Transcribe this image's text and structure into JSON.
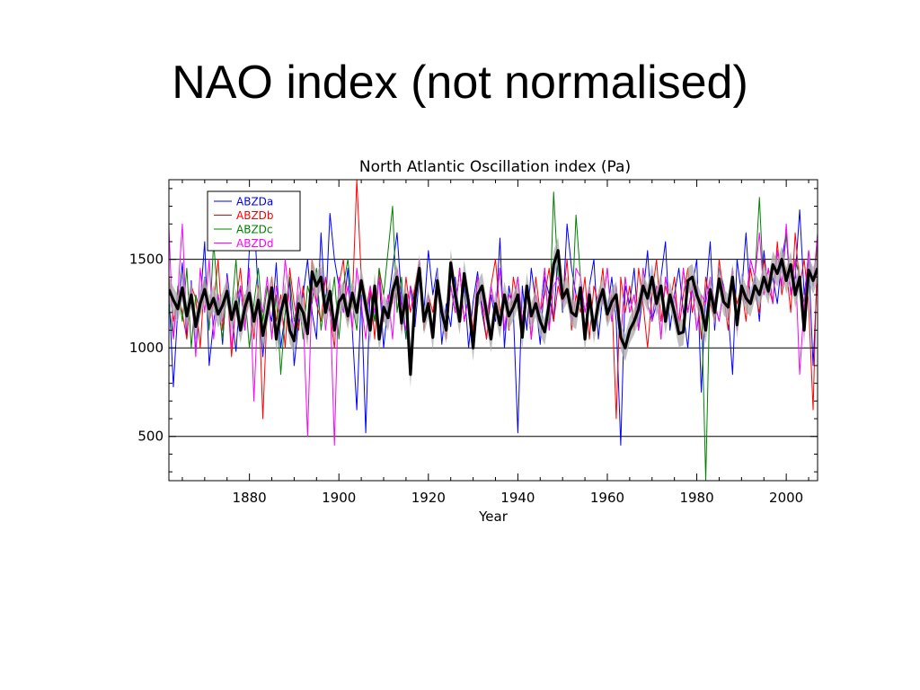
{
  "slide": {
    "title": "NAO index (not normalised)"
  },
  "chart_data": {
    "type": "line",
    "title": "North Atlantic Oscillation index (Pa)",
    "xlabel": "Year",
    "ylabel": "",
    "xlim": [
      1862,
      2007
    ],
    "ylim": [
      250,
      1950
    ],
    "xticks": [
      1880,
      1900,
      1920,
      1940,
      1960,
      1980,
      2000
    ],
    "yticks": [
      500,
      1000,
      1500
    ],
    "horizontal_lines": [
      500,
      1000,
      1500
    ],
    "legend_position": "top-left",
    "series": [
      {
        "name": "ABZDa",
        "color": "#0000ff",
        "x_start": 1862,
        "step": 1,
        "values": [
          1320,
          780,
          1220,
          1480,
          1050,
          1380,
          980,
          1250,
          1600,
          900,
          1150,
          1300,
          1020,
          1420,
          1200,
          980,
          1350,
          1100,
          1560,
          1750,
          1300,
          950,
          1250,
          1150,
          1480,
          1000,
          1200,
          1380,
          900,
          1150,
          1300,
          1500,
          1200,
          1050,
          1650,
          1200,
          1760,
          1500,
          1350,
          1200,
          1450,
          1100,
          650,
          1300,
          520,
          1350,
          1150,
          1400,
          1000,
          1250,
          1450,
          1650,
          1280,
          1050,
          1350,
          1120,
          1400,
          1200,
          1550,
          1300,
          1450,
          1020,
          1250,
          1120,
          1400,
          1150,
          1350,
          1000,
          1260,
          1430,
          1200,
          1050,
          1300,
          1150,
          1620,
          1000,
          1350,
          1200,
          520,
          1350,
          1100,
          1450,
          1250,
          1020,
          1400,
          1300,
          1150,
          1550,
          1200,
          1700,
          1450,
          1300,
          1250,
          1100,
          1350,
          1500,
          1050,
          1300,
          1200,
          1400,
          1150,
          450,
          1350,
          1250,
          1450,
          1100,
          1300,
          1550,
          1150,
          1250,
          1400,
          1600,
          1100,
          1300,
          1450,
          1200,
          1000,
          1350,
          1500,
          750,
          1300,
          1600,
          1100,
          1450,
          1350,
          1200,
          850,
          1500,
          1300,
          1650,
          1250,
          1400,
          1150,
          1550,
          1300,
          1400,
          1250,
          1500,
          1650,
          1300,
          1400,
          1780,
          1300,
          1500,
          900,
          1450
        ]
      },
      {
        "name": "ABZDb",
        "color": "#ff0000",
        "x_start": 1862,
        "step": 1,
        "values": [
          1400,
          1150,
          1300,
          1200,
          1050,
          1350,
          1280,
          1000,
          1400,
          1150,
          1250,
          1500,
          1100,
          1350,
          950,
          1250,
          1450,
          1150,
          1300,
          1050,
          1350,
          600,
          1250,
          1400,
          1150,
          1300,
          1000,
          1450,
          1250,
          1100,
          1350,
          1050,
          1500,
          1250,
          1150,
          1400,
          1200,
          1000,
          1350,
          1500,
          1150,
          1250,
          1950,
          1400,
          1200,
          1350,
          1050,
          1450,
          1150,
          1300,
          1250,
          1450,
          1100,
          1400,
          1200,
          1350,
          1500,
          1100,
          1300,
          1200,
          1400,
          1250,
          1050,
          1350,
          1200,
          1450,
          1150,
          1300,
          1100,
          1400,
          1250,
          1050,
          1350,
          1500,
          1200,
          1300,
          1100,
          1400,
          1250,
          1150,
          1350,
          1050,
          1400,
          1200,
          1300,
          1450,
          1150,
          1350,
          1250,
          1500,
          1100,
          1300,
          1200,
          1400,
          1050,
          1350,
          1250,
          1450,
          1150,
          1300,
          600,
          1400,
          1200,
          1350,
          1100,
          1450,
          1250,
          1000,
          1300,
          1500,
          1150,
          1350,
          1250,
          1400,
          1100,
          1300,
          1450,
          1200,
          1350,
          1050,
          1400,
          1250,
          1150,
          1500,
          1300,
          1100,
          1400,
          1250,
          1350,
          1150,
          1450,
          1300,
          1200,
          1500,
          1350,
          1250,
          1600,
          1300,
          1450,
          1200,
          1650,
          1350,
          1500,
          1250,
          650,
          1600
        ]
      },
      {
        "name": "ABZDc",
        "color": "#008000",
        "x_start": 1862,
        "step": 1,
        "values": [
          1250,
          1050,
          1350,
          1150,
          1450,
          1000,
          1300,
          1200,
          1400,
          1100,
          1600,
          1250,
          1050,
          1350,
          1200,
          1500,
          1100,
          1300,
          1000,
          1250,
          1450,
          1150,
          1350,
          1050,
          1300,
          850,
          1200,
          1400,
          1150,
          1300,
          1050,
          1350,
          1250,
          1450,
          1100,
          1300,
          1200,
          1400,
          1050,
          1350,
          1500,
          1250,
          1100,
          1400,
          1200,
          1300,
          1150,
          1450,
          1300,
          1550,
          1800,
          1200,
          1400,
          1050,
          1350,
          1250,
          1500,
          1150,
          1300,
          1050,
          1400,
          1250,
          1100,
          1350,
          1200,
          1450,
          1150,
          1300,
          1050,
          1400,
          1250,
          1150,
          1350,
          1200,
          1450,
          1100,
          1300,
          1250,
          1400,
          1150,
          1350,
          1050,
          1300,
          1200,
          1450,
          1100,
          1880,
          1400,
          1250,
          1300,
          1150,
          1750,
          1400,
          1200,
          1350,
          1100,
          1300,
          1250,
          1450,
          1150,
          1350,
          1050,
          1400,
          1200,
          1300,
          1100,
          1450,
          1250,
          1150,
          1350,
          1050,
          1400,
          1250,
          1300,
          1150,
          1450,
          1200,
          1350,
          1100,
          1300,
          250,
          1400,
          1250,
          1150,
          1350,
          1200,
          1450,
          1100,
          1300,
          1250,
          1500,
          1400,
          1850,
          1300,
          1450,
          1250,
          1550,
          1350,
          1650,
          1300,
          1500,
          1400,
          1250,
          1550,
          1350,
          1600
        ]
      },
      {
        "name": "ABZDd",
        "color": "#ff00ff",
        "x_start": 1862,
        "step": 1,
        "values": [
          1680,
          1050,
          1300,
          1700,
          1100,
          1350,
          950,
          1450,
          1200,
          1500,
          1050,
          1300,
          1150,
          1400,
          1000,
          1250,
          1350,
          1100,
          1450,
          700,
          1300,
          1200,
          1400,
          1050,
          1350,
          1150,
          1500,
          1250,
          1100,
          1400,
          1200,
          500,
          1350,
          1250,
          1450,
          1100,
          1300,
          450,
          1400,
          1200,
          1350,
          1100,
          1450,
          1250,
          1050,
          1350,
          1200,
          1400,
          1150,
          1300,
          1050,
          1450,
          1250,
          1100,
          1350,
          1200,
          1500,
          1150,
          1300,
          1050,
          1400,
          1250,
          1100,
          1350,
          1200,
          1450,
          1150,
          1300,
          1050,
          1400,
          1250,
          1150,
          1350,
          1200,
          1450,
          1100,
          1300,
          1250,
          1400,
          1150,
          1350,
          1050,
          1300,
          1200,
          1450,
          1100,
          1350,
          1400,
          1250,
          1300,
          1150,
          1450,
          1400,
          1200,
          1350,
          1100,
          1300,
          1250,
          1450,
          1150,
          1350,
          1050,
          1400,
          1200,
          1300,
          1100,
          1450,
          1250,
          1150,
          1350,
          1050,
          1400,
          1250,
          1300,
          1150,
          1450,
          1200,
          1350,
          1100,
          1300,
          1250,
          1400,
          1250,
          1150,
          1350,
          1200,
          1450,
          1100,
          1300,
          1250,
          1500,
          1400,
          1650,
          1300,
          1450,
          1250,
          1550,
          1350,
          1700,
          1300,
          1500,
          850,
          1250,
          1550,
          1350,
          1650
        ]
      },
      {
        "name": "",
        "color": "#000000",
        "x_start": 1862,
        "step": 1,
        "values": [
          1330,
          1270,
          1220,
          1340,
          1180,
          1300,
          1120,
          1250,
          1330,
          1220,
          1280,
          1190,
          1240,
          1320,
          1160,
          1260,
          1100,
          1230,
          1310,
          1150,
          1270,
          1070,
          1200,
          1340,
          1050,
          1200,
          1300,
          1100,
          1040,
          1250,
          1200,
          1080,
          1430,
          1350,
          1400,
          1200,
          1320,
          1100,
          1260,
          1300,
          1180,
          1310,
          1200,
          1380,
          1240,
          1100,
          1350,
          1050,
          1230,
          1170,
          1320,
          1400,
          1140,
          1300,
          850,
          1280,
          1450,
          1150,
          1250,
          1060,
          1380,
          1200,
          1100,
          1480,
          1300,
          1150,
          1420,
          1250,
          1000,
          1300,
          1350,
          1200,
          1050,
          1250,
          1130,
          1300,
          1180,
          1230,
          1300,
          1060,
          1350,
          1180,
          1250,
          1150,
          1090,
          1250,
          1470,
          1550,
          1280,
          1330,
          1200,
          1180,
          1340,
          1050,
          1300,
          1100,
          1250,
          1330,
          1190,
          1260,
          1300,
          1060,
          1000,
          1100,
          1150,
          1220,
          1350,
          1280,
          1400,
          1250,
          1350,
          1150,
          1300,
          1200,
          1080,
          1090,
          1380,
          1400,
          1300,
          1230,
          1100,
          1330,
          1200,
          1390,
          1260,
          1230,
          1400,
          1130,
          1350,
          1280,
          1250,
          1350,
          1300,
          1400,
          1320,
          1470,
          1420,
          1500,
          1380,
          1470,
          1300,
          1400,
          1100,
          1440,
          1380,
          1450
        ]
      }
    ]
  }
}
